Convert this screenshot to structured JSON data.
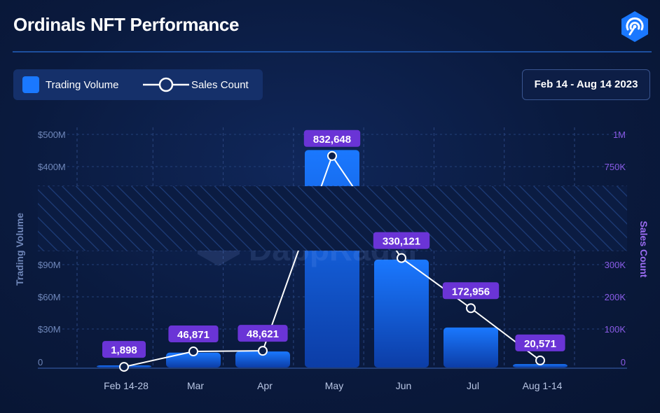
{
  "header": {
    "title": "Ordinals NFT Performance",
    "date_range": "Feb 14 - Aug 14 2023",
    "brand_color": "#1a78ff",
    "logo_icon": "dappradar-logo-icon"
  },
  "legend": {
    "volume_label": "Trading Volume",
    "sales_label": "Sales Count"
  },
  "watermark": "DappRadar",
  "chart_data": {
    "type": "bar",
    "categories": [
      "Feb 14-28",
      "Mar",
      "Apr",
      "May",
      "Jun",
      "Jul",
      "Aug 1-14"
    ],
    "series": [
      {
        "name": "Trading Volume",
        "type": "bar",
        "axis": "left",
        "values": [
          1,
          13,
          14,
          452,
          106,
          35,
          3
        ],
        "value_labels": [
          "$1M",
          "$13M",
          "$14M",
          "$452M",
          "$106M",
          "$35M",
          "$3M"
        ],
        "color": "#1a78ff"
      },
      {
        "name": "Sales Count",
        "type": "line",
        "axis": "right",
        "values": [
          1898,
          46871,
          48621,
          832648,
          330121,
          172956,
          20571
        ],
        "value_labels": [
          "1,898",
          "46,871",
          "48,621",
          "832,648",
          "330,121",
          "172,956",
          "20,571"
        ],
        "color": "#ffffff",
        "label_color": "#6a34d6"
      }
    ],
    "xlabel": "",
    "ylabel": "Trading Volume",
    "y2label": "Sales Count",
    "y_axis_break": true,
    "y_lower_range": [
      0,
      100
    ],
    "y_upper_range": [
      300,
      500
    ],
    "y_ticks_lower": [
      "0",
      "$30M",
      "$60M",
      "$90M"
    ],
    "y_ticks_upper": [
      "$400M",
      "$500M"
    ],
    "y2_lower_range": [
      0,
      360000
    ],
    "y2_upper_range": [
      630000,
      1000000
    ],
    "y2_ticks_lower": [
      "0",
      "100K",
      "200K",
      "300K"
    ],
    "y2_ticks_upper": [
      "750K",
      "1M"
    ],
    "grid": true,
    "legend_position": "top-left"
  }
}
